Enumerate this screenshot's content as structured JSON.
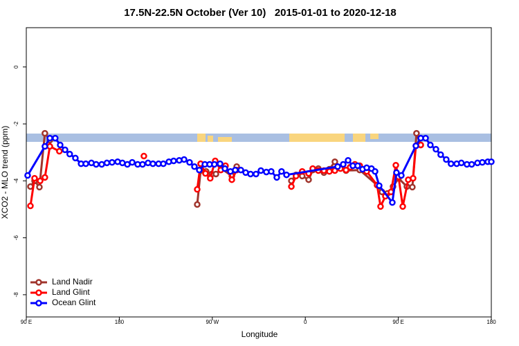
{
  "chart_data": {
    "type": "line",
    "title": "17.5N-22.5N October (Ver 10)   2015-01-01 to 2020-12-18",
    "xlabel": "Longitude",
    "ylabel": "XCO2 - MLO trend (ppm)",
    "xlim": [
      90,
      540
    ],
    "ylim": [
      -8.78,
      1.38
    ],
    "xticks": [
      {
        "value": 90,
        "label": "90 E"
      },
      {
        "value": 180,
        "label": "180"
      },
      {
        "value": 270,
        "label": "90 W"
      },
      {
        "value": 360,
        "label": "0"
      },
      {
        "value": 450,
        "label": "90 E"
      },
      {
        "value": 540,
        "label": "180"
      }
    ],
    "yticks": [
      -8,
      -6,
      -4,
      -2,
      0
    ],
    "legend": "bottomleft",
    "series": [
      {
        "name": "Land Nadir",
        "color": "#a0342c",
        "x": [
          94,
          98,
          102.7,
          108,
          112.8,
          null,
          255.4,
          258.7,
          264,
          269.5,
          273.5,
          278.8,
          288.9,
          293.6,
          null,
          346.5,
          351,
          357,
          363.2,
          367.2,
          372.6,
          378,
          383.3,
          388.6,
          394,
          399.4,
          412.7,
          429.5,
          434.2,
          439.5,
          444.9,
          450.2,
          458.3,
          463.6,
          467.6,
          471.7
        ],
        "values": [
          -4.2,
          -4.0,
          -4.22,
          -2.33,
          -2.57,
          null,
          -4.83,
          -3.64,
          -3.67,
          -3.76,
          -3.76,
          -3.57,
          -3.83,
          -3.5,
          null,
          -4.0,
          -3.79,
          -3.83,
          -3.96,
          -3.62,
          -3.57,
          -3.71,
          -3.59,
          -3.33,
          -3.52,
          -3.64,
          -3.62,
          -4.15,
          -4.39,
          -4.44,
          -4.2,
          -3.91,
          -4.2,
          -4.22,
          -2.33,
          -2.74
        ]
      },
      {
        "name": "Land Glint",
        "color": "#ff0000",
        "x": [
          94,
          98,
          103.4,
          108,
          112.8,
          122,
          null,
          203.8,
          null,
          255.4,
          258.7,
          263.4,
          268,
          272.8,
          278.2,
          282.8,
          288.9,
          293.6,
          null,
          346.5,
          351,
          357,
          363.2,
          367.2,
          372.6,
          378,
          383.3,
          388.6,
          394,
          399.4,
          403.4,
          408,
          412.7,
          419.4,
          429.5,
          432.8,
          437.5,
          442.9,
          447.6,
          450.2,
          454.3,
          459.6,
          464.3,
          467,
          471.7
        ],
        "values": [
          -4.88,
          -3.91,
          -4.0,
          -3.88,
          -2.79,
          -2.96,
          null,
          -3.13,
          null,
          -4.3,
          -3.4,
          -3.74,
          -3.91,
          -3.3,
          -3.62,
          -3.47,
          -3.96,
          -3.62,
          null,
          -4.2,
          -3.83,
          -3.67,
          -3.74,
          -3.57,
          -3.64,
          -3.64,
          -3.67,
          -3.64,
          -3.57,
          -3.62,
          -3.52,
          -3.42,
          -3.47,
          -3.67,
          -4.15,
          -4.9,
          -4.54,
          -4.39,
          -3.45,
          -3.86,
          -4.9,
          -3.96,
          -3.91,
          -2.77,
          -2.74
        ]
      },
      {
        "name": "Ocean Glint",
        "color": "#0000ff",
        "x": [
          91.3,
          108,
          112.8,
          118,
          122.8,
          127.5,
          132,
          137.5,
          143,
          147.6,
          153,
          157.6,
          163,
          168,
          173,
          178.4,
          183,
          187.8,
          192.5,
          197.8,
          202.5,
          207.8,
          212.5,
          218,
          222.6,
          228,
          232.6,
          238,
          242.7,
          248,
          252.7,
          257.4,
          262.8,
          267.4,
          272,
          277.5,
          282.2,
          287.5,
          292.2,
          297.6,
          302.3,
          307,
          312.3,
          317,
          322.3,
          327,
          332.4,
          337,
          341.8,
          391.3,
          396.7,
          401.4,
          406,
          410.7,
          415.4,
          419.4,
          424,
          427.5,
          431.5,
          444.2,
          448.2,
          452.9,
          467,
          471.7,
          476.4,
          481,
          486.4,
          491,
          496.4,
          501,
          506.5,
          511,
          516.4,
          521,
          526.6,
          531.3,
          536.6,
          540
        ],
        "values": [
          -3.81,
          -2.79,
          -2.5,
          -2.5,
          -2.74,
          -2.91,
          -3.06,
          -3.2,
          -3.4,
          -3.4,
          -3.37,
          -3.42,
          -3.42,
          -3.37,
          -3.35,
          -3.33,
          -3.37,
          -3.42,
          -3.35,
          -3.42,
          -3.42,
          -3.37,
          -3.4,
          -3.4,
          -3.4,
          -3.33,
          -3.3,
          -3.28,
          -3.25,
          -3.35,
          -3.5,
          -3.62,
          -3.42,
          -3.42,
          -3.42,
          -3.4,
          -3.57,
          -3.67,
          -3.62,
          -3.62,
          -3.71,
          -3.76,
          -3.76,
          -3.64,
          -3.69,
          -3.67,
          -3.88,
          -3.67,
          -3.79,
          -3.5,
          -3.42,
          -3.28,
          -3.47,
          -3.47,
          -3.59,
          -3.54,
          -3.57,
          -3.67,
          -4.17,
          -4.76,
          -3.71,
          -3.81,
          -2.77,
          -2.5,
          -2.5,
          -2.74,
          -2.89,
          -3.08,
          -3.25,
          -3.4,
          -3.4,
          -3.37,
          -3.42,
          -3.42,
          -3.37,
          -3.35,
          -3.33,
          -3.33
        ]
      }
    ]
  }
}
